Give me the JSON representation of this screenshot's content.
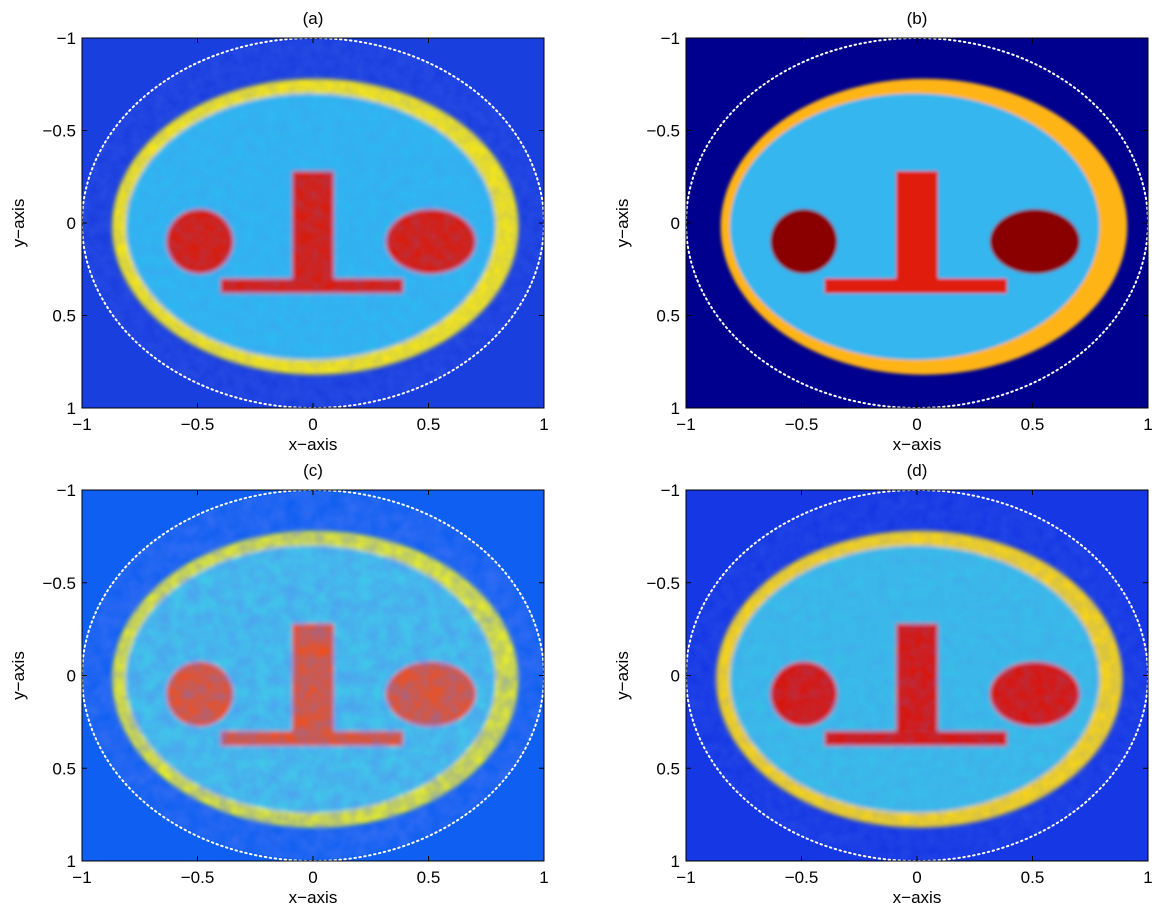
{
  "chart_data": [
    {
      "type": "heatmap",
      "title": "(a)",
      "xlabel": "x−axis",
      "ylabel": "y−axis",
      "xlim": [
        -1,
        1
      ],
      "ylim": [
        -1,
        1
      ],
      "y_reversed": true,
      "xticks": [
        -1,
        -0.5,
        0,
        0.5,
        1
      ],
      "yticks": [
        -1,
        -0.5,
        0,
        0.5,
        1
      ],
      "xtick_labels": [
        "−1",
        "−0.5",
        "0",
        "0.5",
        "1"
      ],
      "ytick_labels": [
        "−1",
        "−0.5",
        "0",
        "0.5",
        "1"
      ],
      "colors": {
        "background": "#1a3fdf",
        "face": "#2eb8f0",
        "rim": "#f2e41c",
        "features": "#d81e0c",
        "circle": "#ffffff"
      },
      "style": "noisy"
    },
    {
      "type": "heatmap",
      "title": "(b)",
      "xlabel": "x−axis",
      "ylabel": "y−axis",
      "xlim": [
        -1,
        1
      ],
      "ylim": [
        -1,
        1
      ],
      "y_reversed": true,
      "xticks": [
        -1,
        -0.5,
        0,
        0.5,
        1
      ],
      "yticks": [
        -1,
        -0.5,
        0,
        0.5,
        1
      ],
      "xtick_labels": [
        "−1",
        "−0.5",
        "0",
        "0.5",
        "1"
      ],
      "ytick_labels": [
        "−1",
        "−0.5",
        "0",
        "0.5",
        "1"
      ],
      "colors": {
        "background": "#00008f",
        "face": "#35b6ee",
        "rim": "#ffb414",
        "features": "#e01a10",
        "circle": "#ffffff",
        "eyes": "#8a0000"
      },
      "style": "smooth"
    },
    {
      "type": "heatmap",
      "title": "(c)",
      "xlabel": "x−axis",
      "ylabel": "y−axis",
      "xlim": [
        -1,
        1
      ],
      "ylim": [
        -1,
        1
      ],
      "y_reversed": true,
      "xticks": [
        -1,
        -0.5,
        0,
        0.5,
        1
      ],
      "yticks": [
        -1,
        -0.5,
        0,
        0.5,
        1
      ],
      "xtick_labels": [
        "−1",
        "−0.5",
        "0",
        "0.5",
        "1"
      ],
      "ytick_labels": [
        "−1",
        "−0.5",
        "0",
        "0.5",
        "1"
      ],
      "colors": {
        "background": "#0f5ff2",
        "face": "#40c8ea",
        "rim": "#e6ec2a",
        "features": "#f0501a",
        "circle": "#ffffff"
      },
      "style": "very-noisy"
    },
    {
      "type": "heatmap",
      "title": "(d)",
      "xlabel": "x−axis",
      "ylabel": "y−axis",
      "xlim": [
        -1,
        1
      ],
      "ylim": [
        -1,
        1
      ],
      "y_reversed": true,
      "xticks": [
        -1,
        -0.5,
        0,
        0.5,
        1
      ],
      "yticks": [
        -1,
        -0.5,
        0,
        0.5,
        1
      ],
      "xtick_labels": [
        "−1",
        "−0.5",
        "0",
        "0.5",
        "1"
      ],
      "ytick_labels": [
        "−1",
        "−0.5",
        "0",
        "0.5",
        "1"
      ],
      "colors": {
        "background": "#1538e4",
        "face": "#38bde8",
        "rim": "#f4d21c",
        "features": "#d8180e",
        "circle": "#ffffff"
      },
      "style": "noisy"
    }
  ]
}
